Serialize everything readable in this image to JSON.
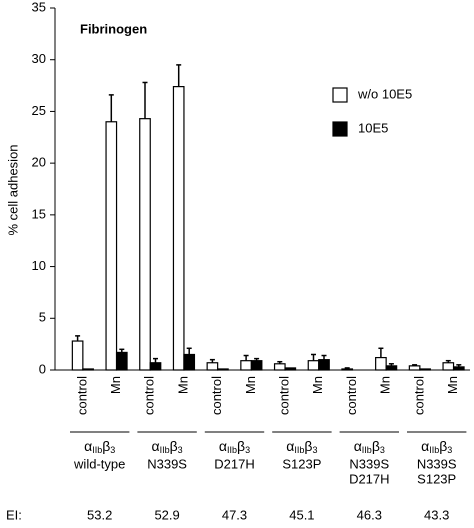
{
  "chart_data": {
    "type": "bar",
    "annotation": "Fibrinogen",
    "y_label": "% cell adhesion",
    "categories": [
      "control",
      "Mn",
      "control",
      "Mn",
      "control",
      "Mn",
      "control",
      "Mn",
      "control",
      "Mn",
      "control",
      "Mn"
    ],
    "series": [
      {
        "name": "w/o 10E5",
        "color": "#ffffff",
        "values": [
          2.8,
          24,
          24.3,
          27.4,
          0.7,
          0.9,
          0.6,
          0.9,
          0.1,
          1.2,
          0.4,
          0.7
        ],
        "errors": [
          0.5,
          2.6,
          3.5,
          2.1,
          0.3,
          0.5,
          0.2,
          0.6,
          0.1,
          0.9,
          0.1,
          0.2
        ]
      },
      {
        "name": "10E5",
        "color": "#000000",
        "values": [
          0.1,
          1.7,
          0.7,
          1.5,
          0.1,
          0.9,
          0.2,
          1.0,
          0.0,
          0.4,
          0.1,
          0.3
        ],
        "errors": [
          0,
          0.3,
          0.4,
          0.6,
          0,
          0.2,
          0,
          0.4,
          0,
          0.2,
          0,
          0.2
        ]
      }
    ],
    "integrin": {
      "alpha": "α",
      "alpha_sub": "IIb",
      "beta": "β",
      "beta_sub": "3"
    },
    "groups": [
      [
        "wild-type"
      ],
      [
        "N339S"
      ],
      [
        "D217H"
      ],
      [
        "S123P"
      ],
      [
        "N339S",
        "D217H"
      ],
      [
        "N339S",
        "S123P"
      ]
    ],
    "ei_label": "EI:",
    "ei": [
      53.2,
      52.9,
      47.3,
      45.1,
      46.3,
      43.3
    ],
    "ylim": [
      0,
      35
    ],
    "yticks": [
      0,
      5,
      10,
      15,
      20,
      25,
      30,
      35
    ],
    "legend": "upper right"
  }
}
